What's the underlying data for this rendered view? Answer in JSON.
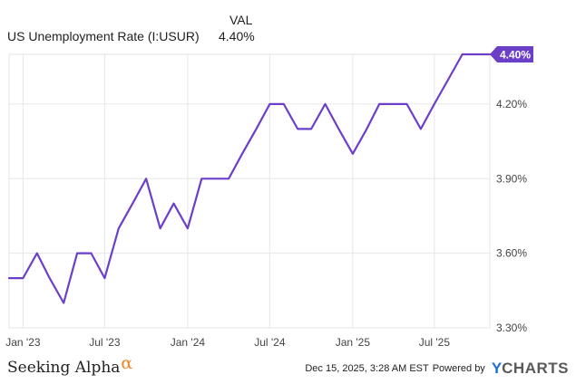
{
  "legend": {
    "column_header": "VAL",
    "series_name": "US Unemployment Rate (I:USUR)",
    "series_value": "4.40%"
  },
  "footer": {
    "logo_text": "Seeking Alpha",
    "logo_symbol": "α",
    "timestamp": "Dec 15, 2025, 3:28 AM EST",
    "powered_by": "Powered by",
    "brand_y": "Y",
    "brand_rest": "CHARTS"
  },
  "colors": {
    "series": "#6c3fc9",
    "grid": "#e6e6e6",
    "axis_text": "#444444"
  },
  "chart_data": {
    "type": "line",
    "title": "",
    "xlabel": "",
    "ylabel": "",
    "ylim": [
      3.3,
      4.4
    ],
    "y_ticks": [
      3.3,
      3.6,
      3.9,
      4.2
    ],
    "y_tick_labels": [
      "3.30%",
      "3.60%",
      "3.90%",
      "4.20%"
    ],
    "x_range": [
      "2022-12-01",
      "2025-11-01"
    ],
    "x_ticks": [
      "2023-01-01",
      "2023-07-01",
      "2024-01-01",
      "2024-07-01",
      "2025-01-01",
      "2025-07-01"
    ],
    "x_tick_labels": [
      "Jan '23",
      "Jul '23",
      "Jan '24",
      "Jul '24",
      "Jan '25",
      "Jul '25"
    ],
    "last_value_label": "4.40%",
    "grid": true,
    "series": [
      {
        "name": "US Unemployment Rate (I:USUR)",
        "x": [
          "2022-12-01",
          "2023-01-01",
          "2023-02-01",
          "2023-03-01",
          "2023-04-01",
          "2023-05-01",
          "2023-06-01",
          "2023-07-01",
          "2023-08-01",
          "2023-09-01",
          "2023-10-01",
          "2023-11-01",
          "2023-12-01",
          "2024-01-01",
          "2024-02-01",
          "2024-03-01",
          "2024-04-01",
          "2024-05-01",
          "2024-06-01",
          "2024-07-01",
          "2024-08-01",
          "2024-09-01",
          "2024-10-01",
          "2024-11-01",
          "2024-12-01",
          "2025-01-01",
          "2025-02-01",
          "2025-03-01",
          "2025-04-01",
          "2025-05-01",
          "2025-06-01",
          "2025-07-01",
          "2025-08-01",
          "2025-09-01",
          "2025-10-01",
          "2025-11-01"
        ],
        "values": [
          3.5,
          3.5,
          3.6,
          3.5,
          3.4,
          3.6,
          3.6,
          3.5,
          3.7,
          3.8,
          3.9,
          3.7,
          3.8,
          3.7,
          3.9,
          3.9,
          3.9,
          4.0,
          4.1,
          4.2,
          4.2,
          4.1,
          4.1,
          4.2,
          4.1,
          4.0,
          4.1,
          4.2,
          4.2,
          4.2,
          4.1,
          4.2,
          4.3,
          4.4,
          4.4,
          4.4
        ]
      }
    ]
  }
}
